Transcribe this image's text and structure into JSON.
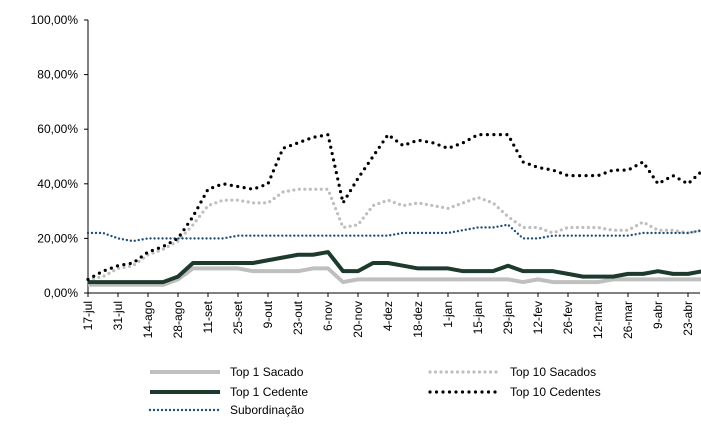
{
  "chart_data": {
    "type": "line",
    "categories": [
      "17-jul",
      null,
      "31-jul",
      null,
      "14-ago",
      null,
      "28-ago",
      null,
      "11-set",
      null,
      "25-set",
      null,
      "9-out",
      null,
      "23-out",
      null,
      "6-nov",
      null,
      "20-nov",
      null,
      "4-dez",
      null,
      "18-dez",
      null,
      "1-jan",
      null,
      "15-jan",
      null,
      "29-jan",
      null,
      "12-fev",
      null,
      "26-fev",
      null,
      "12-mar",
      null,
      "26-mar",
      null,
      "9-abr",
      null,
      "23-abr",
      null
    ],
    "ylim": [
      0,
      100
    ],
    "yticks": [
      {
        "value": 0,
        "label": "0,00%"
      },
      {
        "value": 20,
        "label": "20,00%"
      },
      {
        "value": 40,
        "label": "40,00%"
      },
      {
        "value": 60,
        "label": "60,00%"
      },
      {
        "value": 80,
        "label": "80,00%"
      },
      {
        "value": 100,
        "label": "100,00%"
      }
    ],
    "grid": false,
    "series": [
      {
        "name": "Top 1 Sacado",
        "color": "#bfbfbf",
        "style": "solid",
        "values": [
          3,
          3,
          3,
          3,
          3,
          3,
          5,
          9,
          9,
          9,
          9,
          8,
          8,
          8,
          8,
          9,
          9,
          4,
          5,
          5,
          5,
          5,
          5,
          5,
          5,
          5,
          5,
          5,
          5,
          4,
          5,
          4,
          4,
          4,
          4,
          5,
          5,
          5,
          5,
          5,
          5,
          5
        ]
      },
      {
        "name": "Top 10 Sacados",
        "color": "#bfbfbf",
        "style": "dotted",
        "values": [
          5,
          6,
          9,
          10,
          14,
          16,
          19,
          25,
          32,
          34,
          34,
          33,
          33,
          37,
          38,
          38,
          38,
          24,
          25,
          32,
          34,
          32,
          33,
          32,
          31,
          33,
          35,
          33,
          28,
          24,
          24,
          22,
          24,
          24,
          24,
          23,
          23,
          26,
          23,
          23,
          22,
          23
        ]
      },
      {
        "name": "Top 1 Cedente",
        "color": "#1e3a2c",
        "style": "solid",
        "values": [
          4,
          4,
          4,
          4,
          4,
          4,
          6,
          11,
          11,
          11,
          11,
          11,
          12,
          13,
          14,
          14,
          15,
          8,
          8,
          11,
          11,
          10,
          9,
          9,
          9,
          8,
          8,
          8,
          10,
          8,
          8,
          8,
          7,
          6,
          6,
          6,
          7,
          7,
          8,
          7,
          7,
          8
        ]
      },
      {
        "name": "Top 10 Cedentes",
        "color": "#000000",
        "style": "dotted",
        "values": [
          5,
          8,
          10,
          11,
          15,
          17,
          20,
          28,
          38,
          40,
          39,
          38,
          40,
          53,
          55,
          57,
          58,
          33,
          42,
          50,
          58,
          54,
          56,
          55,
          53,
          55,
          58,
          58,
          58,
          48,
          46,
          45,
          43,
          43,
          43,
          45,
          45,
          48,
          40,
          43,
          40,
          45
        ]
      },
      {
        "name": "Subordinação",
        "color": "#1f4e79",
        "style": "dotted",
        "values": [
          22,
          22,
          20,
          19,
          20,
          20,
          20,
          20,
          20,
          20,
          21,
          21,
          21,
          21,
          21,
          21,
          21,
          21,
          21,
          21,
          21,
          22,
          22,
          22,
          22,
          23,
          24,
          24,
          25,
          20,
          20,
          21,
          21,
          21,
          21,
          21,
          21,
          22,
          22,
          22,
          22,
          23
        ]
      }
    ]
  }
}
